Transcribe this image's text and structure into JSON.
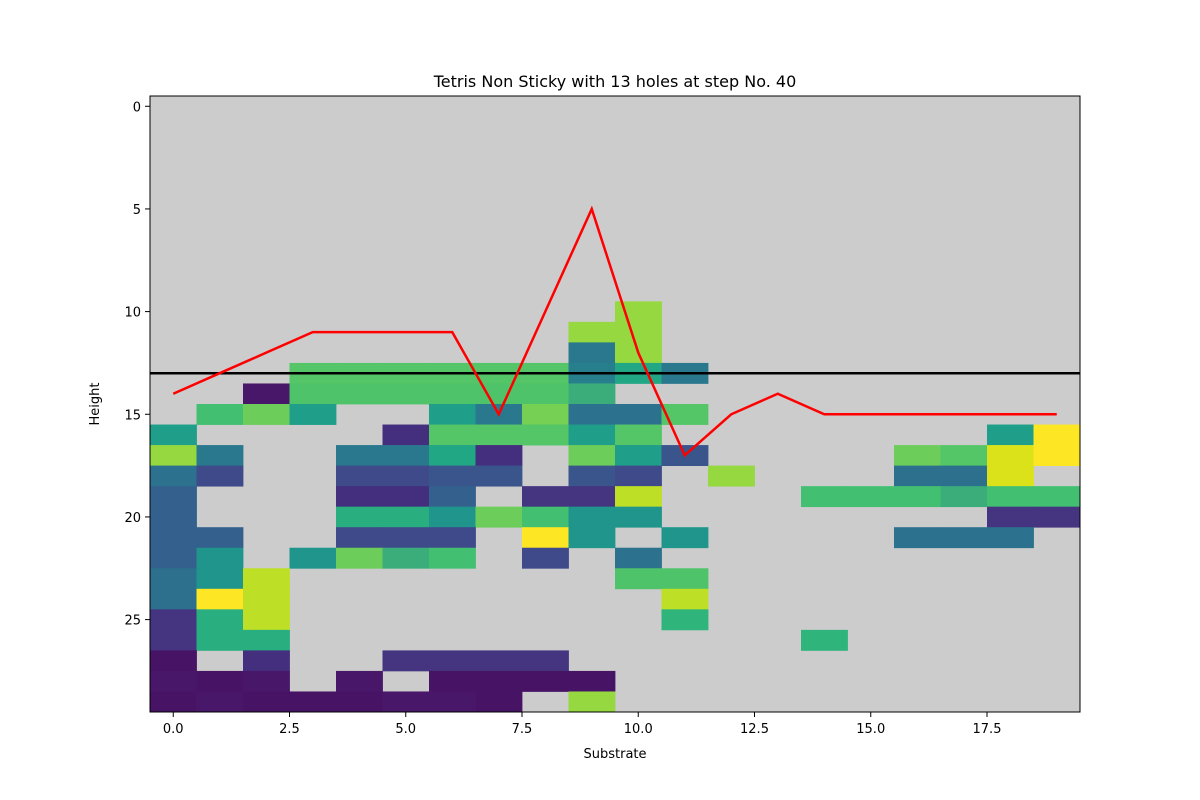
{
  "chart_data": {
    "type": "heatmap",
    "title": "Tetris Non Sticky with 13 holes at step No. 40",
    "xlabel": "Substrate",
    "ylabel": "Height",
    "xlim": [
      -0.5,
      19.5
    ],
    "ylim": [
      29.5,
      -0.5
    ],
    "x_ticks": [
      0.0,
      2.5,
      5.0,
      7.5,
      10.0,
      12.5,
      15.0,
      17.5
    ],
    "x_tick_labels": [
      "0.0",
      "2.5",
      "5.0",
      "7.5",
      "10.0",
      "12.5",
      "15.0",
      "17.5"
    ],
    "y_ticks": [
      0,
      5,
      10,
      15,
      20,
      25
    ],
    "y_tick_labels": [
      "0",
      "5",
      "10",
      "15",
      "20",
      "25"
    ],
    "empty_color": "#cccccc",
    "colormap": "viridis",
    "grid_rows_from_row_9": [
      "..........E.........",
      ".........EE.........",
      ".........CE.........",
      "...QQQQQQFDC........",
      "..AYYYYYYG..........",
      ".HXP..PCZJJQ........",
      "P....OQQQPQ.......PT",
      "EC..CCDO.XPL....XQST",
      "JM..MMLL.LM.E...NNS.",
      "K...OOK.IIW...HHHGHH",
      "K...VVUXHUU.......II",
      "KK..MMM.TU.U....JJJ.",
      "KU.UXGH.M.J.........",
      "NUW.......YY........",
      "NTW........W........",
      "IVW........R........",
      "IVV...........R.....",
      "B.O..IIII...........",
      "ABA.A.BBBB..........",
      "BABBBAAB.E.........."
    ],
    "cell_colors": {
      "A": "#481769",
      "B": "#471365",
      "C": "#2A788E",
      "D": "#22A785",
      "E": "#95D840",
      "F": "#277F8E",
      "G": "#3AAD7A",
      "H": "#43BF71",
      "I": "#453581",
      "J": "#2C718E",
      "K": "#34608D",
      "L": "#3A548C",
      "M": "#3E4A89",
      "N": "#2C708E",
      "O": "#442F7F",
      "P": "#1F9E89",
      "Q": "#55C667",
      "R": "#2FB47C",
      "S": "#DBE21A",
      "T": "#FDE725",
      "U": "#1F958B",
      "V": "#29AF7F",
      "W": "#BDDF26",
      "X": "#6CCD5A",
      "Y": "#4FC369",
      "Z": "#75D054"
    },
    "series": [
      {
        "color": "#ff0000",
        "x": [
          0,
          1,
          2,
          3,
          4,
          5,
          6,
          7,
          8,
          9,
          10,
          11,
          12,
          13,
          14,
          15,
          16,
          17,
          18,
          19
        ],
        "y": [
          14,
          13,
          12,
          11,
          11,
          11,
          11,
          15,
          10,
          5,
          12,
          17,
          15,
          14,
          15,
          15,
          15,
          15,
          15,
          15
        ]
      }
    ],
    "hline": {
      "y": 13,
      "color": "#000000"
    }
  }
}
